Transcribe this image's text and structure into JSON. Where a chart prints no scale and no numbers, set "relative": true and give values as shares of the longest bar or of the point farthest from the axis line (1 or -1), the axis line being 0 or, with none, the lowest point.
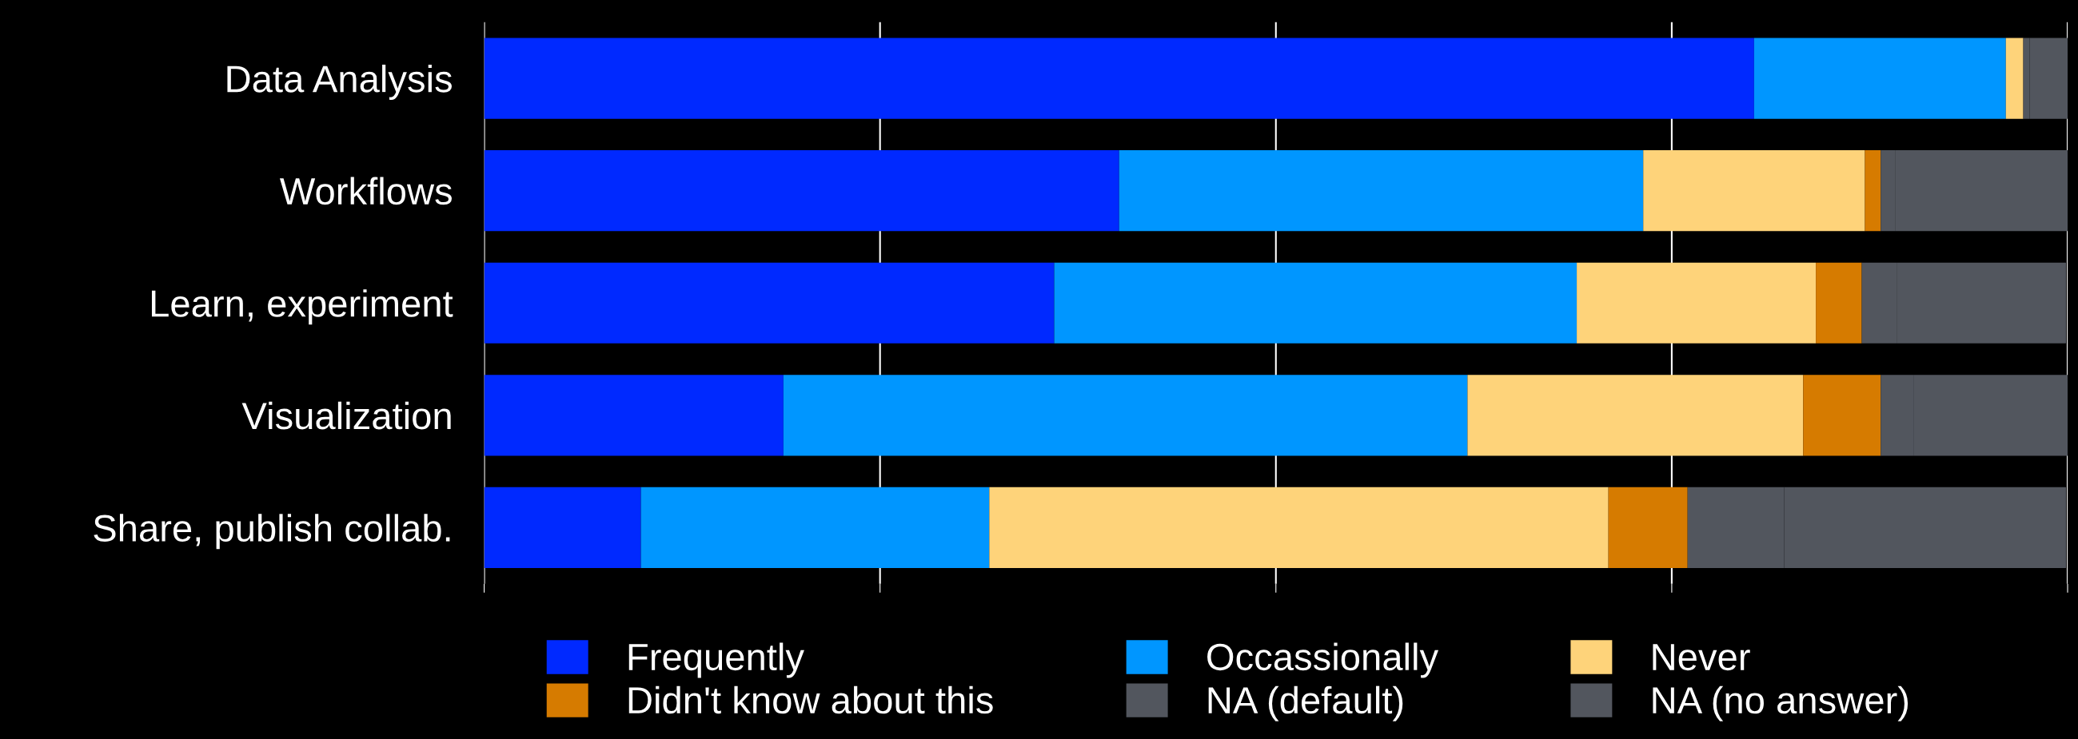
{
  "chart_data": {
    "type": "bar",
    "orientation": "horizontal",
    "stacked": true,
    "relative": true,
    "grid": "x",
    "legend": "bottom",
    "categories": [
      "Data Analysis",
      "Workflows",
      "Learn, experiment",
      "Visualization",
      "Share, publish collab."
    ],
    "series": [
      {
        "name": "Frequently",
        "color": "#0029ff",
        "values": [
          0.802,
          0.401,
          0.36,
          0.189,
          0.099
        ]
      },
      {
        "name": "Occassionally",
        "color": "#0096ff",
        "values": [
          0.159,
          0.331,
          0.33,
          0.432,
          0.22
        ]
      },
      {
        "name": "Never",
        "color": "#fed37a",
        "values": [
          0.011,
          0.14,
          0.151,
          0.212,
          0.391
        ]
      },
      {
        "name": "Didn't know about this",
        "color": "#d67b00",
        "values": [
          0,
          0.01,
          0.029,
          0.049,
          0.05
        ]
      },
      {
        "name": "NA (default)",
        "color": "#52565e",
        "values": [
          0.004,
          0.009,
          0.022,
          0.021,
          0.061
        ]
      },
      {
        "name": "NA (no answer)",
        "color": "#52565e",
        "values": [
          0.024,
          0.109,
          0.107,
          0.097,
          0.178
        ]
      }
    ]
  }
}
